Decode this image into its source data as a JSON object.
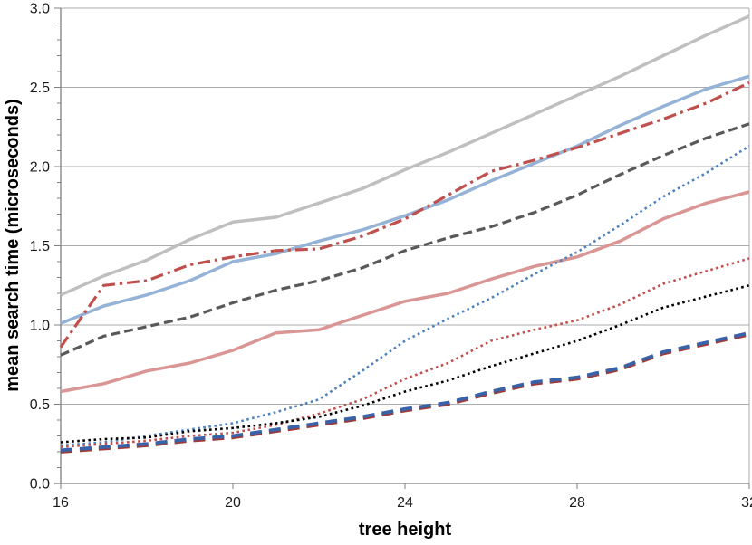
{
  "chart_data": {
    "type": "line",
    "title": "",
    "xlabel": "tree height",
    "ylabel": "mean search time (microseconds)",
    "xlim": [
      16,
      32
    ],
    "ylim": [
      0.0,
      3.0
    ],
    "x_tick_labels": [
      "16",
      "20",
      "24",
      "28",
      "32"
    ],
    "x_tick_values": [
      16,
      20,
      24,
      28,
      32
    ],
    "y_tick_labels": [
      "0.0",
      "0.5",
      "1.0",
      "1.5",
      "2.0",
      "2.5",
      "3.0"
    ],
    "y_tick_values": [
      0.0,
      0.5,
      1.0,
      1.5,
      2.0,
      2.5,
      3.0
    ],
    "y_minor_tick_step": 0.1,
    "grid": "horizontal",
    "legend_position": "none",
    "x": [
      16,
      17,
      18,
      19,
      20,
      21,
      22,
      23,
      24,
      25,
      26,
      27,
      28,
      29,
      30,
      31,
      32
    ],
    "series": [
      {
        "name": "gray-solid",
        "color": "#BFBFBF",
        "style": "solid",
        "width": 3.5,
        "values": [
          1.19,
          1.31,
          1.41,
          1.54,
          1.65,
          1.68,
          1.77,
          1.86,
          1.98,
          2.09,
          2.21,
          2.33,
          2.45,
          2.57,
          2.7,
          2.83,
          2.95
        ]
      },
      {
        "name": "salmon-solid",
        "color": "#D99694",
        "style": "solid",
        "width": 3.5,
        "values": [
          0.58,
          0.63,
          0.71,
          0.76,
          0.84,
          0.95,
          0.97,
          1.06,
          1.15,
          1.2,
          1.29,
          1.37,
          1.43,
          1.53,
          1.67,
          1.77,
          1.84
        ]
      },
      {
        "name": "dark-gray-dashed",
        "color": "#595959",
        "style": "dashed",
        "width": 3.2,
        "values": [
          0.81,
          0.93,
          0.99,
          1.05,
          1.14,
          1.22,
          1.28,
          1.36,
          1.47,
          1.55,
          1.62,
          1.71,
          1.82,
          1.95,
          2.07,
          2.18,
          2.27
        ]
      },
      {
        "name": "light-blue-solid",
        "color": "#95B3D7",
        "style": "solid",
        "width": 3.5,
        "values": [
          1.01,
          1.12,
          1.19,
          1.28,
          1.4,
          1.45,
          1.53,
          1.6,
          1.69,
          1.79,
          1.91,
          2.02,
          2.13,
          2.26,
          2.38,
          2.49,
          2.57
        ]
      },
      {
        "name": "dark-red-dashdot",
        "color": "#C0504D",
        "style": "dashdot",
        "width": 3.2,
        "values": [
          0.86,
          1.25,
          1.28,
          1.38,
          1.43,
          1.47,
          1.48,
          1.56,
          1.67,
          1.82,
          1.97,
          2.04,
          2.12,
          2.21,
          2.3,
          2.4,
          2.53
        ]
      },
      {
        "name": "blue-dotted",
        "color": "#4F81BD",
        "style": "dotted",
        "width": 2.6,
        "values": [
          0.24,
          0.26,
          0.3,
          0.34,
          0.38,
          0.45,
          0.53,
          0.71,
          0.9,
          1.04,
          1.17,
          1.32,
          1.46,
          1.63,
          1.81,
          1.96,
          2.13
        ]
      },
      {
        "name": "red-dotted",
        "color": "#C0504D",
        "style": "dotted",
        "width": 2.6,
        "values": [
          0.23,
          0.25,
          0.27,
          0.3,
          0.32,
          0.37,
          0.44,
          0.53,
          0.66,
          0.76,
          0.9,
          0.97,
          1.03,
          1.13,
          1.26,
          1.34,
          1.42
        ]
      },
      {
        "name": "black-dotted",
        "color": "#000000",
        "style": "dotted",
        "width": 2.6,
        "values": [
          0.26,
          0.28,
          0.29,
          0.33,
          0.35,
          0.38,
          0.42,
          0.49,
          0.58,
          0.65,
          0.74,
          0.82,
          0.9,
          1.0,
          1.11,
          1.18,
          1.25
        ]
      },
      {
        "name": "dark-red-dashed",
        "color": "#9E3B38",
        "style": "long-dashed",
        "width": 3.8,
        "values": [
          0.2,
          0.22,
          0.24,
          0.27,
          0.29,
          0.33,
          0.37,
          0.41,
          0.46,
          0.5,
          0.57,
          0.63,
          0.66,
          0.72,
          0.82,
          0.88,
          0.94
        ]
      },
      {
        "name": "dark-blue-dashed",
        "color": "#3A62A9",
        "style": "long-dashed",
        "width": 3.8,
        "values": [
          0.21,
          0.23,
          0.25,
          0.28,
          0.3,
          0.34,
          0.38,
          0.42,
          0.47,
          0.51,
          0.58,
          0.64,
          0.67,
          0.73,
          0.83,
          0.89,
          0.95
        ]
      }
    ]
  },
  "style_colors": {
    "gridline": "#ABABAB",
    "plot_border": "#ABABAB",
    "axis_line": "#808080",
    "tick_label": "#1A1A1A"
  }
}
